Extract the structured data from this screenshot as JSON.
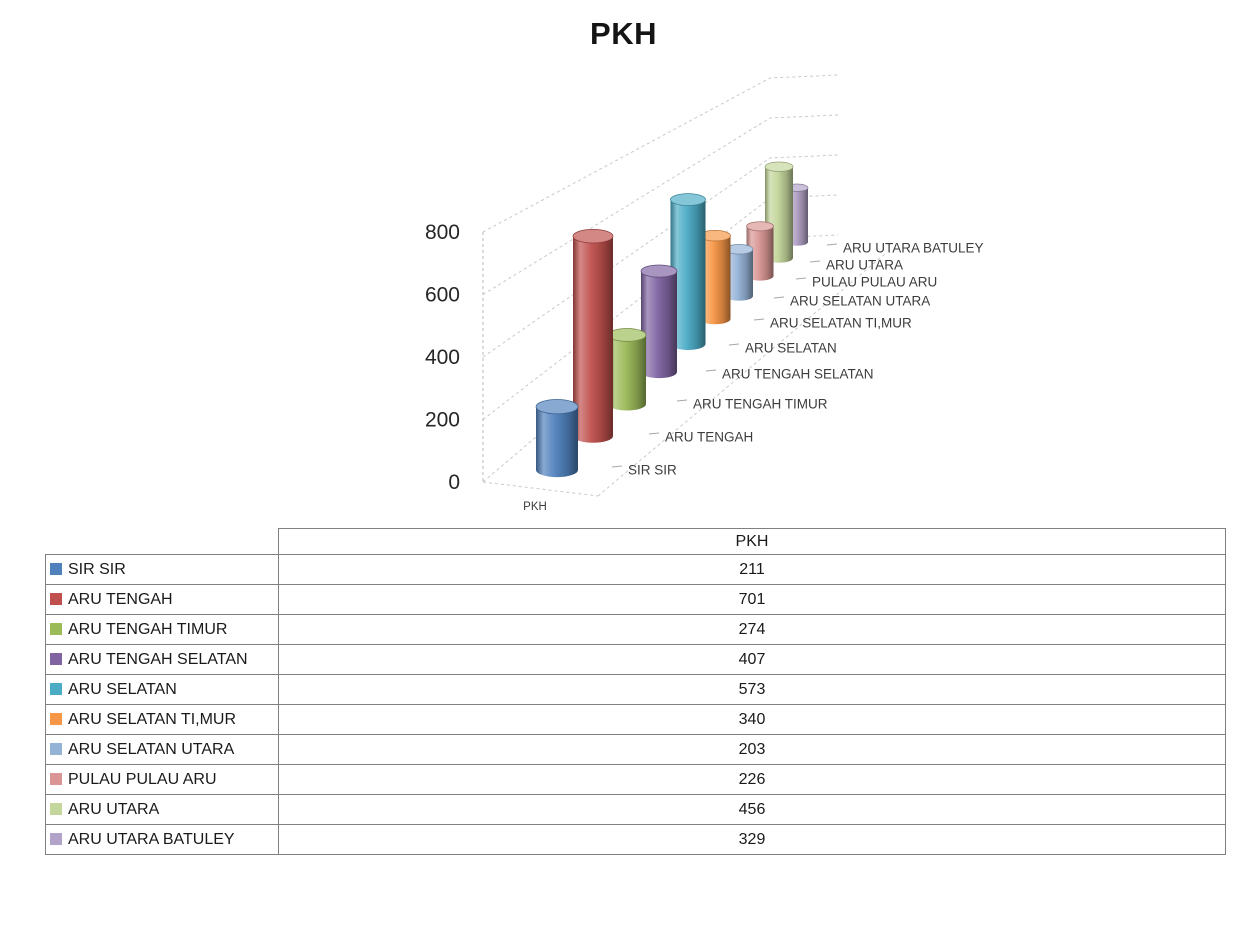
{
  "chart_data": {
    "type": "bar",
    "subtype": "3d-cylinder",
    "title": "PKH",
    "floor_label": "PKH",
    "categories": [
      "SIR SIR",
      "ARU TENGAH",
      "ARU TENGAH TIMUR",
      "ARU TENGAH SELATAN",
      "ARU SELATAN",
      "ARU SELATAN TI,MUR",
      "ARU SELATAN UTARA",
      "PULAU PULAU ARU",
      "ARU UTARA",
      "ARU UTARA BATULEY"
    ],
    "values": [
      211,
      701,
      274,
      407,
      573,
      340,
      203,
      226,
      456,
      329
    ],
    "colors": [
      "#4F81BD",
      "#C0504D",
      "#9BBB59",
      "#8064A2",
      "#4BACC6",
      "#F79646",
      "#95B3D7",
      "#D99694",
      "#C3D69B",
      "#B3A2C7"
    ],
    "y_axis": {
      "min": 0,
      "max": 800,
      "tick_step": 200,
      "ticks": [
        0,
        200,
        400,
        600,
        800
      ]
    },
    "grid": "dashed",
    "legend_position": "none"
  },
  "table": {
    "header": {
      "corner": "",
      "value_col": "PKH"
    }
  }
}
